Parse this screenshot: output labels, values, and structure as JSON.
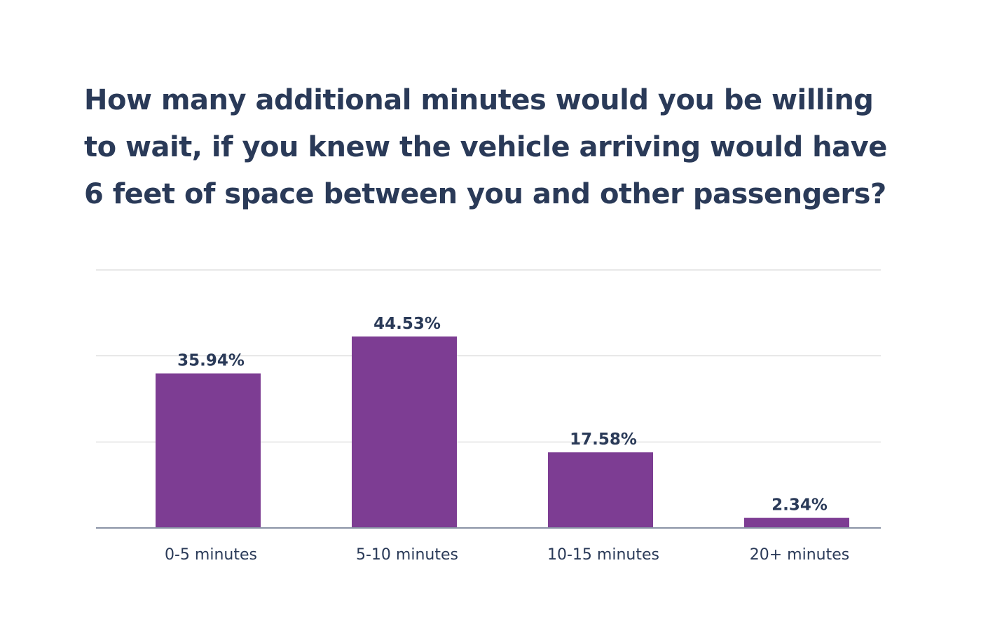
{
  "chart_data": {
    "type": "bar",
    "title": "How many additional minutes would you be willing to wait, if you knew the vehicle arriving would have 6 feet of space between you and other passengers?",
    "categories": [
      "0-5 minutes",
      "5-10 minutes",
      "10-15 minutes",
      "20+ minutes"
    ],
    "values": [
      35.94,
      44.53,
      17.58,
      2.34
    ],
    "value_labels": [
      "35.94%",
      "44.53%",
      "17.58%",
      "2.34%"
    ],
    "ylim": [
      0,
      60
    ],
    "gridlines": [
      0,
      20,
      40,
      60
    ],
    "grid": true,
    "xlabel": "",
    "ylabel": "",
    "colors": {
      "bar": "#7d3d93",
      "grid": "#d0d0d0",
      "axis": "#8a93a6",
      "text": "#2a3a58"
    }
  }
}
